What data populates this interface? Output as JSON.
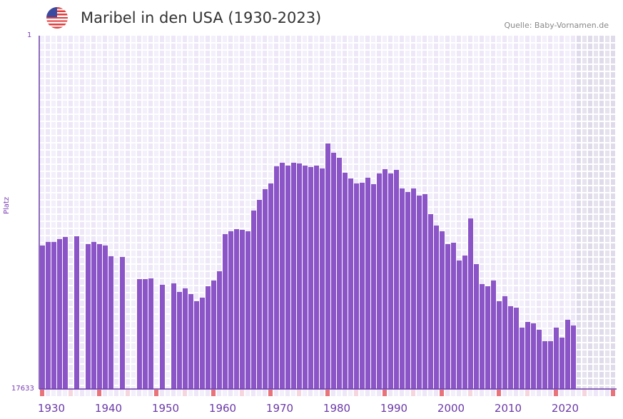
{
  "header": {
    "title": "Maribel in den USA (1930-2023)",
    "source": "Quelle: Baby-Vornamen.de",
    "flag_icon": "us-flag-icon"
  },
  "chart_data": {
    "type": "bar",
    "title": "Maribel in den USA (1930-2023)",
    "ylabel": "Platz",
    "xlabel": "",
    "y_axis_inverted": true,
    "ylim": [
      1,
      17633
    ],
    "y_tick_labels": [
      "1",
      "17633"
    ],
    "xlim": [
      1930,
      2030
    ],
    "x_tick_labels": [
      "1930",
      "1940",
      "1950",
      "1960",
      "1970",
      "1980",
      "1990",
      "2000",
      "2010",
      "2020"
    ],
    "bar_color": "#8b55c8",
    "future_shade_from": 2024,
    "years": [
      1930,
      1931,
      1932,
      1933,
      1934,
      1935,
      1936,
      1937,
      1938,
      1939,
      1940,
      1941,
      1942,
      1943,
      1944,
      1945,
      1946,
      1947,
      1948,
      1949,
      1950,
      1951,
      1952,
      1953,
      1954,
      1955,
      1956,
      1957,
      1958,
      1959,
      1960,
      1961,
      1962,
      1963,
      1964,
      1965,
      1966,
      1967,
      1968,
      1969,
      1970,
      1971,
      1972,
      1973,
      1974,
      1975,
      1976,
      1977,
      1978,
      1979,
      1980,
      1981,
      1982,
      1983,
      1984,
      1985,
      1986,
      1987,
      1988,
      1989,
      1990,
      1991,
      1992,
      1993,
      1994,
      1995,
      1996,
      1997,
      1998,
      1999,
      2000,
      2001,
      2002,
      2003,
      2004,
      2005,
      2006,
      2007,
      2008,
      2009,
      2010,
      2011,
      2012,
      2013,
      2014,
      2015,
      2016,
      2017,
      2018,
      2019,
      2020,
      2021,
      2022,
      2023
    ],
    "ranks": [
      10472,
      10294,
      10294,
      10152,
      10045,
      null,
      10010,
      null,
      10401,
      10294,
      10401,
      10472,
      11007,
      null,
      11042,
      null,
      null,
      12147,
      12147,
      12112,
      null,
      12432,
      null,
      12361,
      12789,
      12610,
      12895,
      13251,
      13073,
      12503,
      12218,
      11755,
      9903,
      9761,
      9654,
      9690,
      9761,
      8728,
      8194,
      7660,
      7374,
      6519,
      6341,
      6484,
      6341,
      6377,
      6484,
      6555,
      6484,
      6626,
      5380,
      5843,
      6092,
      6840,
      7125,
      7374,
      7339,
      7089,
      7410,
      6876,
      6662,
      6876,
      6698,
      7624,
      7802,
      7624,
      7980,
      7909,
      8906,
      9476,
      9761,
      10401,
      10331,
      11221,
      10972,
      9120,
      11399,
      12397,
      12503,
      12218,
      13251,
      13002,
      13500,
      13572,
      14569,
      14284,
      14355,
      14676,
      15246,
      15246,
      14569,
      15068,
      14177,
      14462
    ]
  }
}
